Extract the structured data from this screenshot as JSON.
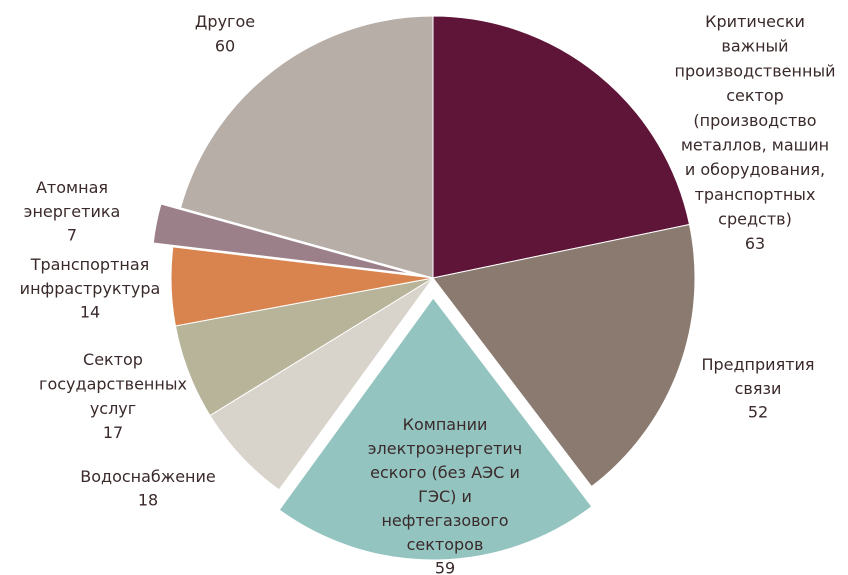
{
  "chart_data": {
    "type": "pie",
    "categories": [
      "Критически\nважный\nпроизводственный\nсектор\n(производство\nметаллов, машин\nи  оборудования,\nтранспортных\nсредств)",
      "Предприятия\nсвязи",
      "Компании\nэлектроэнергетич\nеского (без АЭС и\nГЭС) и\nнефтегазового\nсекторов",
      "Водоснабжение",
      "Сектор\nгосударственных\nуслуг",
      "Транспортная\nинфраструктура",
      "Атомная\nэнергетика",
      "Другое"
    ],
    "values": [
      63,
      52,
      59,
      18,
      17,
      14,
      7,
      60
    ],
    "colors": [
      "#5e1538",
      "#8a7a70",
      "#93c4c0",
      "#d8d3cb",
      "#b7b49a",
      "#d9844f",
      "#9b8089",
      "#b8aea8"
    ],
    "exploded": [
      false,
      false,
      true,
      false,
      false,
      false,
      true,
      false
    ]
  }
}
